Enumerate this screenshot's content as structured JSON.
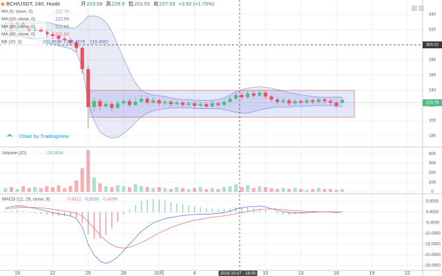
{
  "chart_data": [
    {
      "type": "candlestick",
      "title": "BCH/USDT, 240, Huobi",
      "quote": [
        {
          "label": "开",
          "value": 223.58
        },
        {
          "label": "高",
          "value": 229.5
        },
        {
          "label": "低",
          "value": 223.55
        },
        {
          "label": "收",
          "value": 227.53
        }
      ],
      "change": "+3.92 (+1.75%)",
      "indicators": [
        {
          "name": "MA (5, close, 0)",
          "color": "#9e9e9e",
          "value": 222.78
        },
        {
          "name": "MA (10, close, 0)",
          "color": "#7e57c2",
          "value": 222.06
        },
        {
          "name": "MA (30, close, 0)",
          "color": "#43a047",
          "value": 221.88
        },
        {
          "name": "MA (60, close, 0)",
          "color": "#e57373",
          "value": 221.94
        },
        {
          "name": "BB (20, 2)",
          "color": "#5c6bc0",
          "values": [
            221.9528,
            225.4678,
            218.4562
          ]
        }
      ],
      "watermark": "Chart by TradingView",
      "x": [
        0,
        0.5,
        1,
        1.5,
        2,
        2.5,
        3,
        3.5,
        4,
        4.5,
        5,
        5.5,
        6,
        6.5,
        7,
        7.5,
        8,
        8.5,
        9,
        9.5,
        10,
        10.5,
        11,
        11.5,
        12,
        12.5,
        13,
        13.5,
        14,
        14.5,
        15,
        15.5,
        16,
        16.5,
        17,
        17.5,
        18,
        18.5,
        19,
        19.5,
        20,
        20.5,
        21,
        21.5,
        22,
        22.5,
        23,
        23.5,
        24,
        24.5,
        25,
        25.5,
        26,
        26.5,
        27,
        27.5,
        28,
        28.5
      ],
      "open": [
        322,
        326,
        321,
        328,
        324,
        319,
        322,
        317,
        314,
        312,
        308,
        306,
        303,
        296,
        268,
        218,
        226,
        219,
        222,
        217,
        223,
        226,
        221,
        225,
        229,
        224,
        227,
        223,
        225,
        222,
        224,
        221,
        223,
        220,
        222,
        219,
        223,
        221,
        225,
        229,
        234,
        231,
        236,
        233,
        237,
        232,
        228,
        225,
        227,
        223,
        226,
        224,
        227,
        225,
        228,
        226,
        224,
        223.58
      ],
      "high": [
        330,
        329,
        332,
        331,
        327,
        325,
        324,
        320,
        317,
        314,
        311,
        309,
        305,
        298,
        272,
        230,
        229,
        226,
        225,
        227,
        230,
        229,
        231,
        234,
        232,
        231,
        229,
        228,
        227,
        227,
        226,
        226,
        225,
        225,
        224,
        226,
        225,
        228,
        233,
        238,
        237,
        240,
        239,
        241,
        239,
        234,
        231,
        230,
        229,
        229,
        228,
        230,
        229,
        231,
        230,
        229,
        226,
        229.5
      ],
      "low": [
        318,
        318,
        319,
        320,
        315,
        316,
        313,
        310,
        308,
        303,
        302,
        299,
        290,
        262,
        190,
        212,
        214,
        216,
        213,
        215,
        220,
        218,
        219,
        223,
        221,
        222,
        220,
        220,
        219,
        220,
        218,
        219,
        217,
        218,
        216,
        217,
        218,
        219,
        223,
        227,
        228,
        229,
        230,
        231,
        229,
        225,
        222,
        222,
        220,
        221,
        221,
        222,
        222,
        223,
        223,
        221,
        217,
        223.55
      ],
      "close": [
        326,
        321,
        328,
        324,
        319,
        322,
        317,
        314,
        312,
        308,
        306,
        303,
        296,
        268,
        218,
        226,
        219,
        222,
        217,
        223,
        226,
        221,
        225,
        229,
        224,
        227,
        223,
        225,
        222,
        224,
        221,
        223,
        220,
        222,
        219,
        223,
        221,
        225,
        229,
        234,
        231,
        236,
        233,
        237,
        232,
        228,
        225,
        227,
        223,
        226,
        224,
        227,
        225,
        228,
        226,
        224,
        220,
        227.53
      ],
      "bb_upper": [
        334,
        335,
        335,
        334,
        333,
        332,
        331,
        330,
        328,
        326,
        324,
        322,
        323,
        330,
        338,
        338,
        336,
        330,
        318,
        300,
        282,
        265,
        250,
        240,
        236,
        234,
        233,
        232,
        230,
        229,
        228,
        228,
        227,
        227,
        227,
        227,
        228,
        230,
        234,
        238,
        241,
        243,
        244,
        245,
        244,
        243,
        241,
        239,
        237,
        236,
        234,
        233,
        232,
        231,
        231,
        231,
        231,
        231
      ],
      "bb_lower": [
        312,
        311,
        311,
        310,
        309,
        307,
        305,
        303,
        301,
        299,
        297,
        295,
        290,
        270,
        225,
        200,
        185,
        180,
        177,
        178,
        183,
        190,
        198,
        205,
        210,
        213,
        215,
        216,
        217,
        217,
        217,
        217,
        216,
        216,
        216,
        216,
        216,
        215,
        213,
        211,
        210,
        210,
        212,
        214,
        216,
        217,
        218,
        218,
        218,
        219,
        219,
        219,
        220,
        220,
        220,
        220,
        219,
        219
      ],
      "up_color": "#53b987",
      "down_color": "#eb4d5c",
      "band_color": "#5c6bc0",
      "xlim": [
        -0.46,
        35.3
      ],
      "xticks": [
        {
          "value": 1,
          "label": "19"
        },
        {
          "value": 4,
          "label": "22"
        },
        {
          "value": 7,
          "label": "25"
        },
        {
          "value": 10,
          "label": "28"
        },
        {
          "value": 13,
          "label": "10月"
        },
        {
          "value": 16,
          "label": "4"
        },
        {
          "value": 22,
          "label": "10"
        },
        {
          "value": 25,
          "label": "13"
        },
        {
          "value": 28,
          "label": "16"
        },
        {
          "value": 31,
          "label": "19"
        },
        {
          "value": 34,
          "label": "22"
        }
      ],
      "ylim": [
        166.4,
        359.1
      ],
      "yticks": [
        180,
        200,
        220,
        240,
        260,
        280,
        300,
        320,
        340
      ],
      "last_price": 223.79,
      "crosshair": {
        "x": 19.67,
        "x_label": "2019-10-07 · 16:00",
        "price": 300.02
      }
    },
    {
      "type": "bar",
      "title": "Volume (20)",
      "value_text": "29.383K",
      "values": [
        4,
        5,
        3,
        6,
        4,
        5,
        4,
        6,
        5,
        7,
        4,
        6,
        12,
        25,
        44,
        15,
        9,
        6,
        5,
        7,
        6,
        5,
        8,
        6,
        5,
        4,
        5,
        4,
        3,
        5,
        4,
        3,
        4,
        5,
        3,
        4,
        3,
        5,
        6,
        8,
        5,
        7,
        4,
        6,
        5,
        4,
        3,
        4,
        3,
        4,
        3,
        2,
        3,
        4,
        3,
        3,
        2,
        3
      ],
      "ylim": [
        0,
        45
      ],
      "yticks": [
        {
          "value": 0,
          "label": "0"
        },
        {
          "value": 10,
          "label": "10K"
        },
        {
          "value": 20,
          "label": "20K"
        },
        {
          "value": 30,
          "label": "30K"
        },
        {
          "value": 40,
          "label": "40K"
        }
      ]
    },
    {
      "type": "macd",
      "title": "MACD (12, 26, close, 9)",
      "legend_values": [
        0.6412,
        0.2016,
        -0.4396
      ],
      "macd": [
        2,
        2.5,
        3,
        2.8,
        2.2,
        1.8,
        1.2,
        0.5,
        -0.2,
        -0.8,
        -1.2,
        -1.8,
        -3,
        -7,
        -15,
        -20,
        -23,
        -24,
        -23,
        -21,
        -18,
        -15,
        -12,
        -9,
        -7,
        -5,
        -4,
        -3,
        -2.5,
        -2,
        -1.6,
        -1.3,
        -1.1,
        -1,
        -1,
        -0.8,
        -0.6,
        -0.2,
        0.5,
        1.5,
        2,
        2.5,
        2.6,
        2.8,
        2.4,
        1.6,
        0.8,
        0.3,
        -0.2,
        -0.3,
        -0.4,
        -0.2,
        -0.1,
        0.1,
        0.2,
        0.1,
        -0.2,
        0.2
      ],
      "signal": [
        1.5,
        1.8,
        2.1,
        2.3,
        2.3,
        2.2,
        2,
        1.7,
        1.3,
        0.9,
        0.5,
        0.1,
        -0.5,
        -1.8,
        -4.5,
        -7.6,
        -10.7,
        -13.4,
        -15.3,
        -16.5,
        -16.8,
        -16.4,
        -15.5,
        -14.2,
        -12.8,
        -11.2,
        -9.8,
        -8.4,
        -7.2,
        -6.2,
        -5.3,
        -4.5,
        -3.8,
        -3.3,
        -2.8,
        -2.4,
        -2.1,
        -1.7,
        -1.3,
        -0.7,
        -0.2,
        0.3,
        0.8,
        1.2,
        1.4,
        1.5,
        1.4,
        1.2,
        0.9,
        0.7,
        0.5,
        0.4,
        0.3,
        0.2,
        0.2,
        0.2,
        0.1,
        0.2
      ],
      "histogram": [
        0.5,
        0.7,
        0.9,
        0.5,
        -0.1,
        -0.4,
        -0.8,
        -1.2,
        -1.5,
        -1.7,
        -1.7,
        -1.9,
        -2.5,
        -5.2,
        -10.5,
        -12.4,
        -12.3,
        -10.6,
        -7.7,
        -4.5,
        -1.2,
        1.4,
        3.5,
        5.2,
        5.8,
        6.2,
        5.8,
        5.4,
        4.7,
        4.2,
        3.7,
        3.2,
        2.7,
        2.3,
        1.8,
        1.6,
        1.5,
        1.5,
        1.8,
        2.2,
        2.2,
        2.2,
        1.8,
        1.6,
        1.0,
        0.1,
        -0.6,
        -0.9,
        -1.1,
        -1,
        -0.9,
        -0.6,
        -0.4,
        -0.1,
        0,
        -0.1,
        -0.3,
        0
      ],
      "macd_color": "#5b7fd6",
      "signal_color": "#e57373",
      "ylim": [
        -27.3,
        7.9
      ],
      "yticks": [
        {
          "value": 5,
          "label": "5.0000"
        },
        {
          "value": 0,
          "label": "0.0000"
        },
        {
          "value": -5,
          "label": "-5.0000"
        },
        {
          "value": -10,
          "label": "-10.0000"
        },
        {
          "value": -15,
          "label": "-15.0000"
        },
        {
          "value": -20,
          "label": "-20.0000"
        },
        {
          "value": -25,
          "label": "-25.0000"
        }
      ]
    }
  ]
}
